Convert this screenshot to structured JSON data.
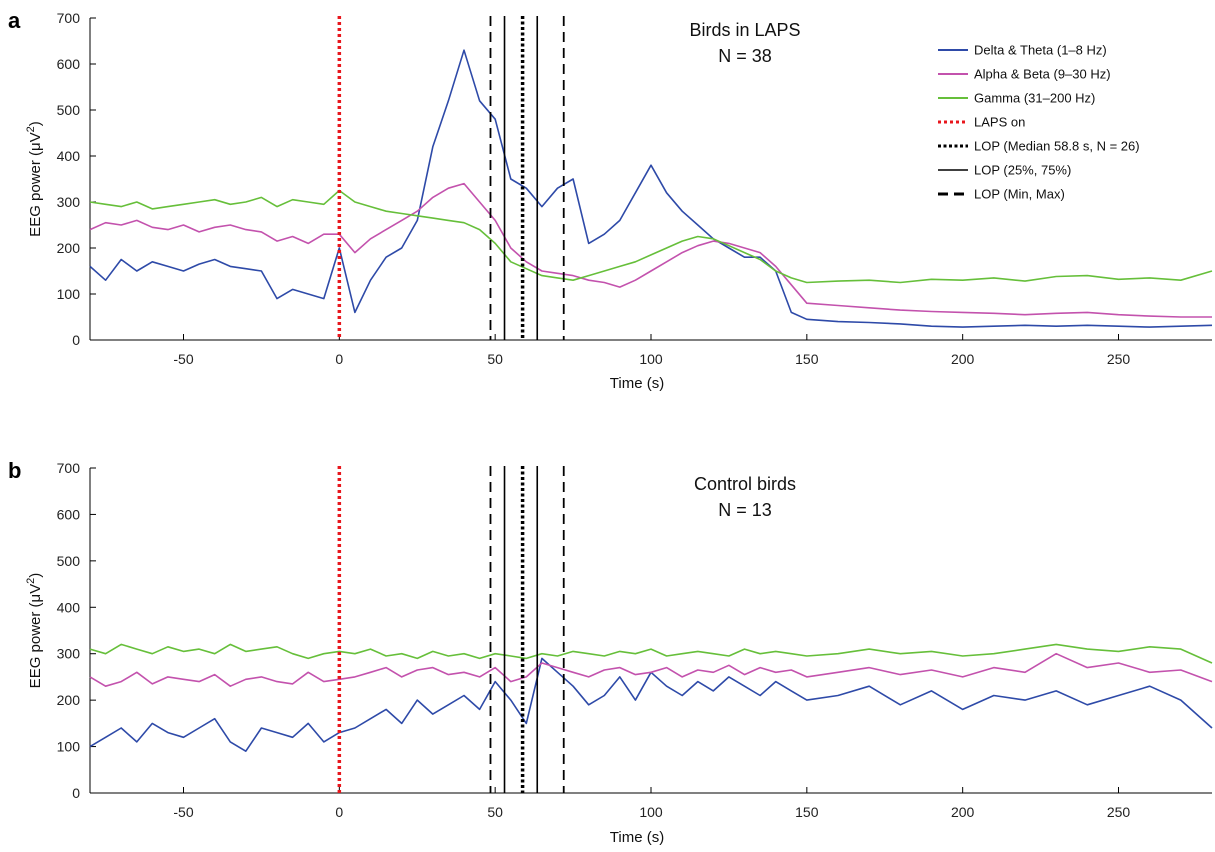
{
  "chart_data": [
    {
      "type": "line",
      "panel": "a",
      "annotation": [
        "Birds in LAPS",
        "N = 38"
      ],
      "xlabel": "Time (s)",
      "ylabel": "EEG power",
      "ylabel_unit": "(μV",
      "ylabel_sup": "2",
      "ylabel_close": ")",
      "xlim": [
        -80,
        280
      ],
      "ylim": [
        0,
        700
      ],
      "xticks": [
        -50,
        0,
        50,
        100,
        150,
        200,
        250
      ],
      "yticks": [
        0,
        100,
        200,
        300,
        400,
        500,
        600,
        700
      ],
      "grid": false,
      "legend_position": "top-right",
      "series": [
        {
          "name": "Delta & Theta (1–8 Hz)",
          "color": "#2e4aa8",
          "x": [
            -80,
            -75,
            -70,
            -65,
            -60,
            -55,
            -50,
            -45,
            -40,
            -35,
            -30,
            -25,
            -20,
            -15,
            -10,
            -5,
            0,
            5,
            10,
            15,
            20,
            25,
            30,
            35,
            40,
            45,
            50,
            55,
            60,
            65,
            70,
            75,
            80,
            85,
            90,
            95,
            100,
            105,
            110,
            115,
            120,
            125,
            130,
            135,
            140,
            145,
            150,
            160,
            170,
            180,
            190,
            200,
            210,
            220,
            230,
            240,
            250,
            260,
            270,
            280
          ],
          "y": [
            160,
            130,
            175,
            150,
            170,
            160,
            150,
            165,
            175,
            160,
            155,
            150,
            90,
            110,
            100,
            90,
            200,
            60,
            130,
            180,
            200,
            260,
            420,
            520,
            630,
            520,
            480,
            350,
            330,
            290,
            330,
            350,
            210,
            230,
            260,
            320,
            380,
            320,
            280,
            250,
            220,
            200,
            180,
            180,
            150,
            60,
            45,
            40,
            38,
            35,
            30,
            28,
            30,
            32,
            30,
            32,
            30,
            28,
            30,
            32
          ]
        },
        {
          "name": "Alpha & Beta (9–30 Hz)",
          "color": "#c352ad",
          "x": [
            -80,
            -75,
            -70,
            -65,
            -60,
            -55,
            -50,
            -45,
            -40,
            -35,
            -30,
            -25,
            -20,
            -15,
            -10,
            -5,
            0,
            5,
            10,
            15,
            20,
            25,
            30,
            35,
            40,
            45,
            50,
            55,
            60,
            65,
            70,
            75,
            80,
            85,
            90,
            95,
            100,
            105,
            110,
            115,
            120,
            125,
            130,
            135,
            140,
            145,
            150,
            160,
            170,
            180,
            190,
            200,
            210,
            220,
            230,
            240,
            250,
            260,
            270,
            280
          ],
          "y": [
            240,
            255,
            250,
            260,
            245,
            240,
            250,
            235,
            245,
            250,
            240,
            235,
            215,
            225,
            210,
            230,
            230,
            190,
            220,
            240,
            260,
            280,
            310,
            330,
            340,
            300,
            260,
            200,
            170,
            150,
            145,
            140,
            130,
            125,
            115,
            130,
            150,
            170,
            190,
            205,
            215,
            210,
            200,
            190,
            160,
            120,
            80,
            75,
            70,
            65,
            62,
            60,
            58,
            55,
            58,
            60,
            55,
            52,
            50,
            50
          ]
        },
        {
          "name": "Gamma (31–200 Hz)",
          "color": "#66bf3a",
          "x": [
            -80,
            -75,
            -70,
            -65,
            -60,
            -55,
            -50,
            -45,
            -40,
            -35,
            -30,
            -25,
            -20,
            -15,
            -10,
            -5,
            0,
            5,
            10,
            15,
            20,
            25,
            30,
            35,
            40,
            45,
            50,
            55,
            60,
            65,
            70,
            75,
            80,
            85,
            90,
            95,
            100,
            105,
            110,
            115,
            120,
            125,
            130,
            135,
            140,
            145,
            150,
            160,
            170,
            180,
            190,
            200,
            210,
            220,
            230,
            240,
            250,
            260,
            270,
            280
          ],
          "y": [
            300,
            295,
            290,
            300,
            285,
            290,
            295,
            300,
            305,
            295,
            300,
            310,
            290,
            305,
            300,
            295,
            325,
            300,
            290,
            280,
            275,
            270,
            265,
            260,
            255,
            240,
            210,
            170,
            155,
            140,
            135,
            130,
            140,
            150,
            160,
            170,
            185,
            200,
            215,
            225,
            220,
            205,
            190,
            175,
            150,
            135,
            125,
            128,
            130,
            125,
            132,
            130,
            135,
            128,
            138,
            140,
            132,
            135,
            130,
            150
          ]
        }
      ]
    },
    {
      "type": "line",
      "panel": "b",
      "annotation": [
        "Control birds",
        "N = 13"
      ],
      "xlabel": "Time (s)",
      "ylabel": "EEG power",
      "ylabel_unit": "(μV",
      "ylabel_sup": "2",
      "ylabel_close": ")",
      "xlim": [
        -80,
        280
      ],
      "ylim": [
        0,
        700
      ],
      "xticks": [
        -50,
        0,
        50,
        100,
        150,
        200,
        250
      ],
      "yticks": [
        0,
        100,
        200,
        300,
        400,
        500,
        600,
        700
      ],
      "grid": false,
      "series": [
        {
          "name": "Delta & Theta (1–8 Hz)",
          "color": "#2e4aa8",
          "x": [
            -80,
            -75,
            -70,
            -65,
            -60,
            -55,
            -50,
            -45,
            -40,
            -35,
            -30,
            -25,
            -20,
            -15,
            -10,
            -5,
            0,
            5,
            10,
            15,
            20,
            25,
            30,
            35,
            40,
            45,
            50,
            55,
            60,
            65,
            70,
            75,
            80,
            85,
            90,
            95,
            100,
            105,
            110,
            115,
            120,
            125,
            130,
            135,
            140,
            145,
            150,
            160,
            170,
            180,
            190,
            200,
            210,
            220,
            230,
            240,
            250,
            260,
            270,
            280
          ],
          "y": [
            100,
            120,
            140,
            110,
            150,
            130,
            120,
            140,
            160,
            110,
            90,
            140,
            130,
            120,
            150,
            110,
            130,
            140,
            160,
            180,
            150,
            200,
            170,
            190,
            210,
            180,
            240,
            200,
            150,
            290,
            260,
            230,
            190,
            210,
            250,
            200,
            260,
            230,
            210,
            240,
            220,
            250,
            230,
            210,
            240,
            220,
            200,
            210,
            230,
            190,
            220,
            180,
            210,
            200,
            220,
            190,
            210,
            230,
            200,
            140
          ]
        },
        {
          "name": "Alpha & Beta (9–30 Hz)",
          "color": "#c352ad",
          "x": [
            -80,
            -75,
            -70,
            -65,
            -60,
            -55,
            -50,
            -45,
            -40,
            -35,
            -30,
            -25,
            -20,
            -15,
            -10,
            -5,
            0,
            5,
            10,
            15,
            20,
            25,
            30,
            35,
            40,
            45,
            50,
            55,
            60,
            65,
            70,
            75,
            80,
            85,
            90,
            95,
            100,
            105,
            110,
            115,
            120,
            125,
            130,
            135,
            140,
            145,
            150,
            160,
            170,
            180,
            190,
            200,
            210,
            220,
            230,
            240,
            250,
            260,
            270,
            280
          ],
          "y": [
            250,
            230,
            240,
            260,
            235,
            250,
            245,
            240,
            255,
            230,
            245,
            250,
            240,
            235,
            260,
            240,
            245,
            250,
            260,
            270,
            250,
            265,
            270,
            255,
            260,
            250,
            270,
            240,
            250,
            280,
            270,
            260,
            250,
            265,
            270,
            255,
            260,
            270,
            250,
            265,
            260,
            275,
            255,
            270,
            260,
            265,
            250,
            260,
            270,
            255,
            265,
            250,
            270,
            260,
            300,
            270,
            280,
            260,
            265,
            240
          ]
        },
        {
          "name": "Gamma (31–200 Hz)",
          "color": "#66bf3a",
          "x": [
            -80,
            -75,
            -70,
            -65,
            -60,
            -55,
            -50,
            -45,
            -40,
            -35,
            -30,
            -25,
            -20,
            -15,
            -10,
            -5,
            0,
            5,
            10,
            15,
            20,
            25,
            30,
            35,
            40,
            45,
            50,
            55,
            60,
            65,
            70,
            75,
            80,
            85,
            90,
            95,
            100,
            105,
            110,
            115,
            120,
            125,
            130,
            135,
            140,
            145,
            150,
            160,
            170,
            180,
            190,
            200,
            210,
            220,
            230,
            240,
            250,
            260,
            270,
            280
          ],
          "y": [
            310,
            300,
            320,
            310,
            300,
            315,
            305,
            310,
            300,
            320,
            305,
            310,
            315,
            300,
            290,
            300,
            305,
            300,
            310,
            295,
            300,
            290,
            305,
            295,
            300,
            290,
            300,
            295,
            290,
            300,
            295,
            305,
            300,
            295,
            305,
            300,
            310,
            295,
            300,
            305,
            300,
            295,
            310,
            300,
            305,
            300,
            295,
            300,
            310,
            300,
            305,
            295,
            300,
            310,
            320,
            310,
            305,
            315,
            310,
            280
          ]
        }
      ]
    }
  ],
  "markers": [
    {
      "name": "LAPS on",
      "x": 0,
      "style": "red-dotted",
      "color": "#e8161c"
    },
    {
      "name": "LOP (Median 58.8 s, N = 26)",
      "x": 58.8,
      "style": "black-dotted",
      "color": "#000000"
    },
    {
      "name": "LOP (25%, 75%)",
      "x": [
        53,
        63.5
      ],
      "style": "black-solid",
      "color": "#000000"
    },
    {
      "name": "LOP (Min, Max)",
      "x": [
        48.5,
        72
      ],
      "style": "black-dashed",
      "color": "#000000"
    }
  ]
}
